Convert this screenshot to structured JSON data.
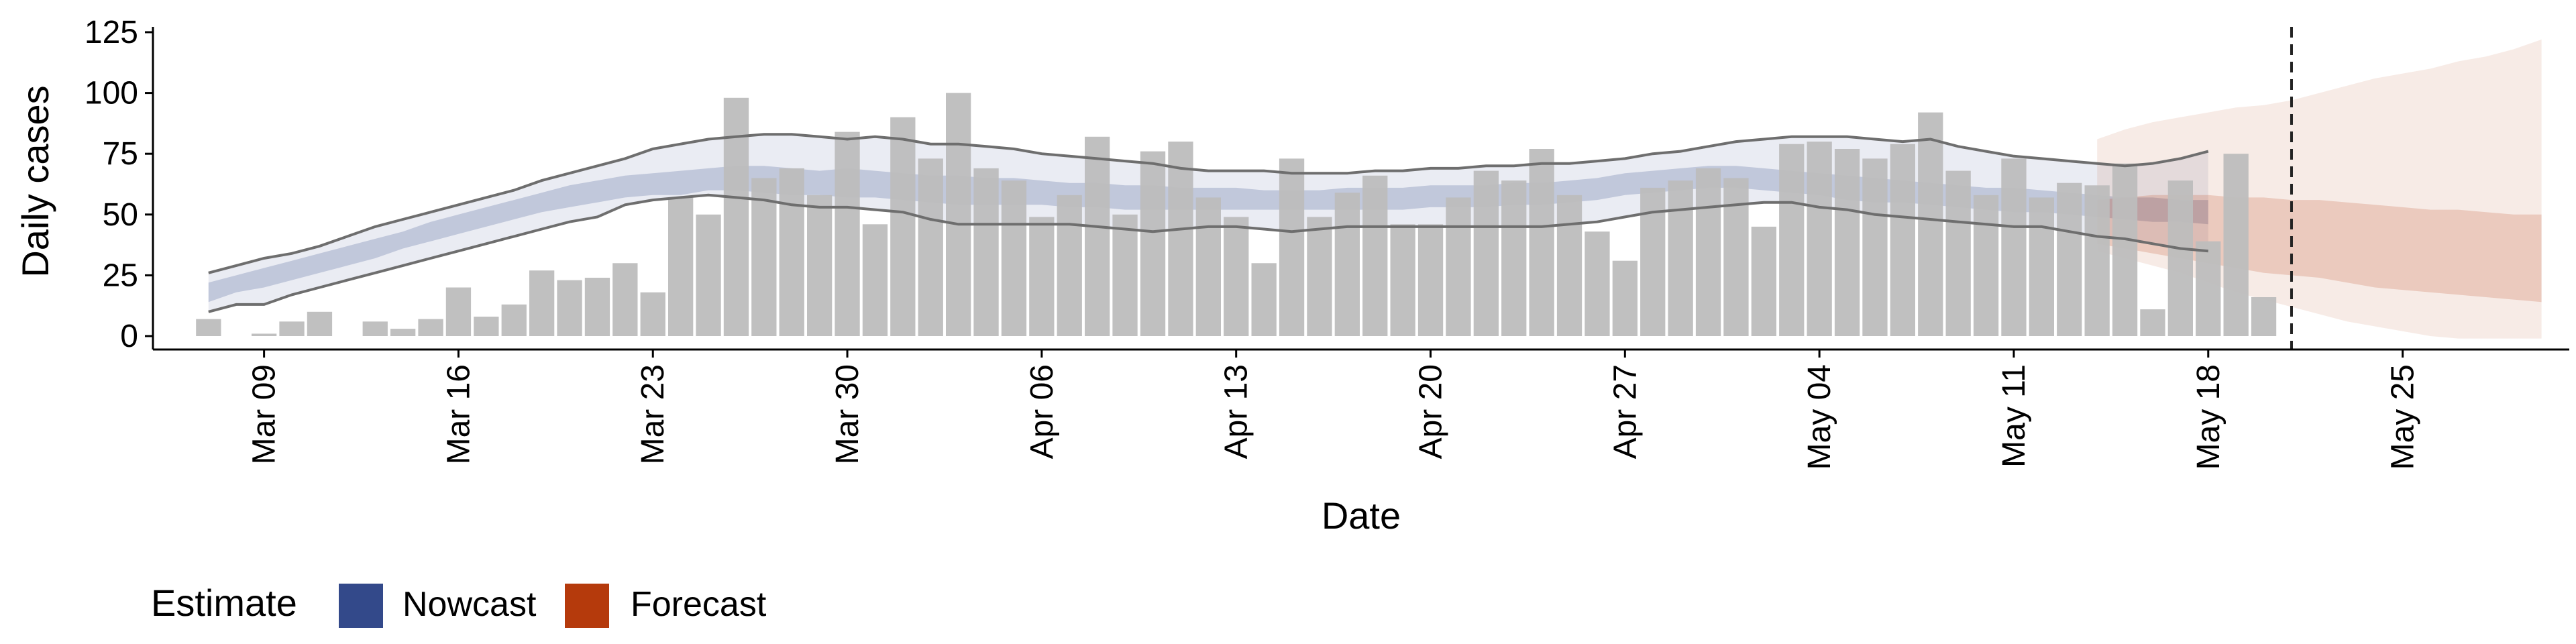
{
  "chart_data": {
    "type": "bar",
    "xlabel": "Date",
    "ylabel": "Daily cases",
    "ylim": [
      0,
      125
    ],
    "xlim": [
      "2020-03-05",
      "2020-05-31"
    ],
    "y_ticks": [
      0,
      25,
      50,
      75,
      100,
      125
    ],
    "x_ticks": [
      {
        "date": "2020-03-09",
        "label": "Mar 09"
      },
      {
        "date": "2020-03-16",
        "label": "Mar 16"
      },
      {
        "date": "2020-03-23",
        "label": "Mar 23"
      },
      {
        "date": "2020-03-30",
        "label": "Mar 30"
      },
      {
        "date": "2020-04-06",
        "label": "Apr 06"
      },
      {
        "date": "2020-04-13",
        "label": "Apr 13"
      },
      {
        "date": "2020-04-20",
        "label": "Apr 20"
      },
      {
        "date": "2020-04-27",
        "label": "Apr 27"
      },
      {
        "date": "2020-05-04",
        "label": "May 04"
      },
      {
        "date": "2020-05-11",
        "label": "May 11"
      },
      {
        "date": "2020-05-18",
        "label": "May 18"
      },
      {
        "date": "2020-05-25",
        "label": "May 25"
      }
    ],
    "grid": false,
    "legend": {
      "title": "Estimate",
      "position": "bottom-left",
      "entries": [
        {
          "label": "Nowcast",
          "color": "#33498a"
        },
        {
          "label": "Forecast",
          "color": "#b53a0c"
        }
      ]
    },
    "bars": {
      "start_date": "2020-03-07",
      "color": "#bdbdbd",
      "values": [
        7,
        0,
        1,
        6,
        10,
        0,
        6,
        3,
        7,
        20,
        8,
        13,
        27,
        23,
        24,
        30,
        18,
        57,
        50,
        98,
        65,
        69,
        58,
        84,
        46,
        90,
        73,
        100,
        69,
        64,
        49,
        58,
        82,
        50,
        76,
        80,
        57,
        49,
        30,
        73,
        49,
        59,
        66,
        46,
        46,
        57,
        68,
        64,
        77,
        58,
        43,
        31,
        61,
        64,
        69,
        65,
        45,
        79,
        80,
        77,
        73,
        79,
        92,
        68,
        58,
        73,
        57,
        63,
        62,
        71,
        11,
        64,
        39,
        75,
        16
      ]
    },
    "reference_line": {
      "date": "2020-05-21",
      "style": "dashed",
      "color": "#222222"
    },
    "nowcast": {
      "color": "#33498a",
      "start_date": "2020-03-07",
      "outer_lower": [
        10,
        13,
        13,
        17,
        20,
        23,
        26,
        29,
        32,
        35,
        38,
        41,
        44,
        47,
        49,
        54,
        56,
        57,
        58,
        57,
        56,
        54,
        53,
        53,
        52,
        51,
        48,
        46,
        46,
        46,
        46,
        46,
        45,
        44,
        43,
        44,
        45,
        45,
        44,
        43,
        44,
        45,
        45,
        45,
        45,
        45,
        45,
        45,
        45,
        46,
        47,
        49,
        51,
        52,
        53,
        54,
        55,
        55,
        53,
        52,
        50,
        49,
        48,
        47,
        46,
        45,
        45,
        43,
        41,
        40,
        38,
        36,
        35
      ],
      "outer_upper": [
        26,
        29,
        32,
        34,
        37,
        41,
        45,
        48,
        51,
        54,
        57,
        60,
        64,
        67,
        70,
        73,
        77,
        79,
        81,
        82,
        83,
        83,
        82,
        81,
        82,
        81,
        79,
        79,
        78,
        77,
        75,
        74,
        73,
        72,
        71,
        69,
        68,
        68,
        68,
        67,
        67,
        67,
        68,
        68,
        69,
        69,
        70,
        70,
        71,
        71,
        72,
        73,
        75,
        76,
        78,
        80,
        81,
        82,
        82,
        82,
        81,
        80,
        81,
        78,
        76,
        74,
        73,
        72,
        71,
        70,
        71,
        73,
        76
      ],
      "inner_lower": [
        14,
        18,
        20,
        23,
        26,
        29,
        32,
        36,
        39,
        42,
        45,
        48,
        51,
        53,
        55,
        57,
        58,
        58,
        60,
        60,
        59,
        58,
        58,
        57,
        57,
        56,
        55,
        54,
        54,
        54,
        54,
        53,
        53,
        52,
        52,
        52,
        52,
        52,
        52,
        52,
        52,
        52,
        52,
        52,
        53,
        53,
        53,
        54,
        54,
        55,
        56,
        58,
        59,
        60,
        61,
        61,
        60,
        59,
        58,
        56,
        55,
        55,
        54,
        53,
        52,
        51,
        51,
        50,
        49,
        48,
        47,
        47,
        46
      ],
      "inner_upper": [
        22,
        25,
        28,
        31,
        34,
        37,
        40,
        43,
        47,
        50,
        53,
        56,
        59,
        62,
        64,
        66,
        67,
        68,
        69,
        70,
        70,
        69,
        68,
        69,
        68,
        67,
        66,
        66,
        65,
        65,
        64,
        63,
        63,
        62,
        62,
        61,
        61,
        61,
        60,
        60,
        60,
        61,
        61,
        61,
        62,
        62,
        62,
        63,
        63,
        64,
        65,
        67,
        68,
        69,
        70,
        70,
        69,
        68,
        67,
        66,
        65,
        64,
        63,
        62,
        61,
        61,
        60,
        59,
        58,
        57,
        57,
        56,
        56
      ]
    },
    "forecast": {
      "color": "#b53a0c",
      "start_date": "2020-05-14",
      "outer_lower": [
        35,
        32,
        29,
        26,
        22,
        18,
        15,
        12,
        9,
        6,
        4,
        2,
        0,
        -2,
        -4,
        -6,
        -10
      ],
      "outer_upper": [
        81,
        85,
        88,
        90,
        92,
        94,
        95,
        97,
        100,
        103,
        106,
        108,
        110,
        113,
        115,
        118,
        122
      ],
      "inner_lower": [
        38,
        36,
        34,
        32,
        30,
        28,
        26,
        25,
        24,
        22,
        20,
        19,
        18,
        17,
        16,
        15,
        14
      ],
      "inner_upper": [
        56,
        57,
        58,
        58,
        58,
        57,
        57,
        56,
        56,
        55,
        54,
        53,
        52,
        52,
        51,
        50,
        50
      ]
    }
  }
}
